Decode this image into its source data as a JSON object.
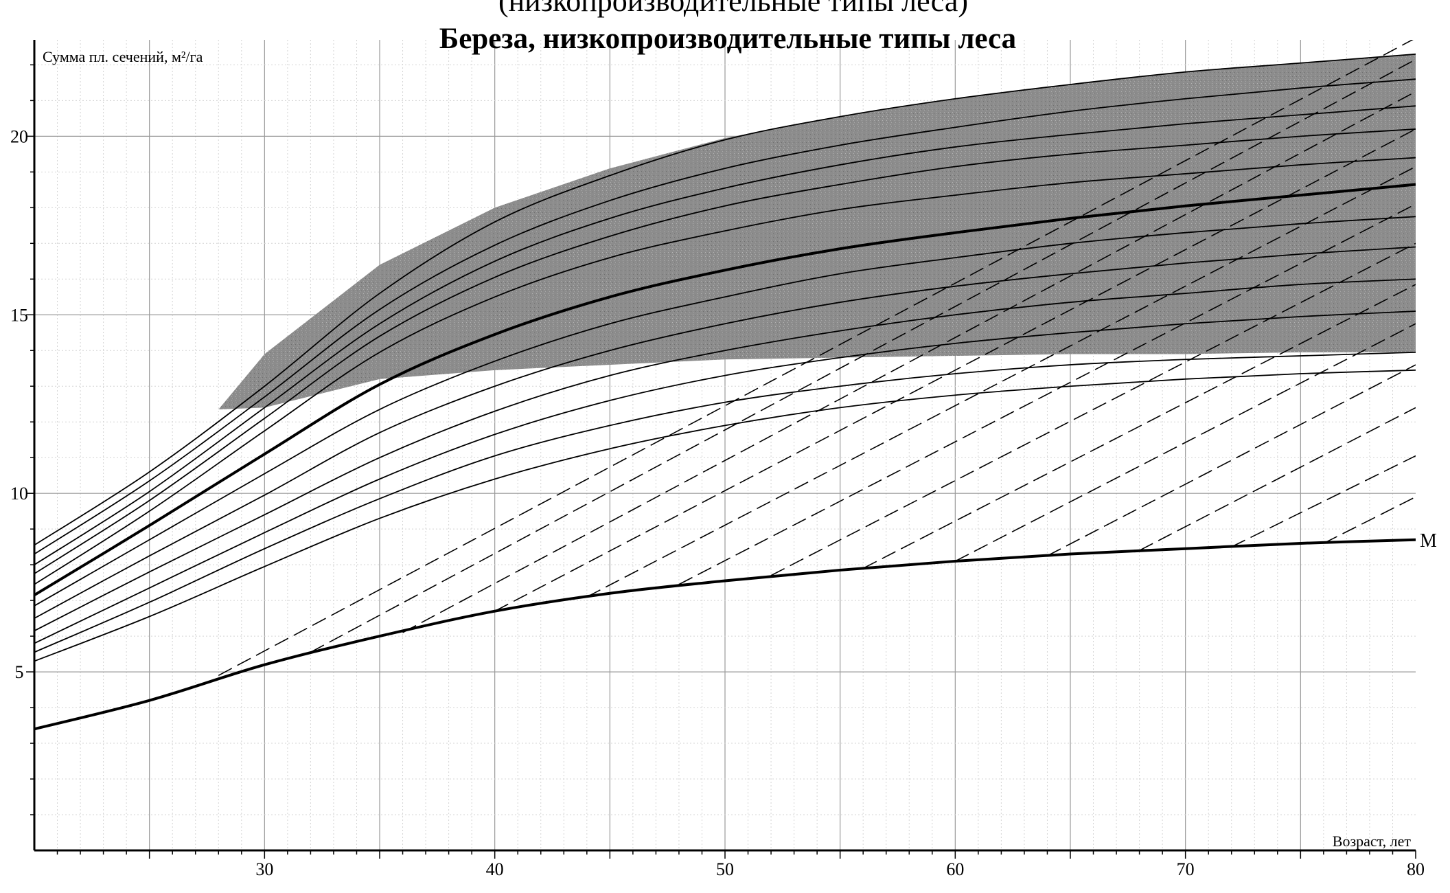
{
  "page_header_fragment": "(низкопроизводительные типы леса)",
  "chart_data": {
    "type": "line",
    "title": "Береза, низкопроизводительные типы леса",
    "xlabel": "Возраст, лет",
    "ylabel": "Сумма пл. сечений, м²/га",
    "xlim": [
      20,
      80
    ],
    "ylim": [
      0,
      22.7
    ],
    "x_ticks": [
      30,
      40,
      50,
      60,
      70,
      80
    ],
    "y_ticks": [
      5,
      10,
      15,
      20
    ],
    "grid": true,
    "shaded_band": {
      "x": [
        28,
        30,
        35,
        40,
        45,
        50,
        55,
        60,
        65,
        70,
        75,
        80
      ],
      "upper": [
        12.35,
        13.9,
        16.4,
        18.0,
        19.1,
        19.95,
        20.55,
        21.05,
        21.45,
        21.8,
        22.05,
        22.3
      ],
      "lower": [
        12.35,
        12.4,
        13.2,
        13.45,
        13.6,
        13.75,
        13.8,
        13.85,
        13.9,
        13.9,
        13.95,
        13.95
      ]
    },
    "solid_series": [
      {
        "x": [
          20,
          25,
          30,
          35,
          40,
          45,
          50,
          55,
          60,
          65,
          70,
          75,
          80
        ],
        "values": [
          8.55,
          10.6,
          13.0,
          15.6,
          17.6,
          18.9,
          19.9,
          20.55,
          21.05,
          21.45,
          21.8,
          22.05,
          22.3
        ]
      },
      {
        "x": [
          20,
          25,
          30,
          35,
          40,
          45,
          50,
          55,
          60,
          65,
          70,
          75,
          80
        ],
        "values": [
          8.3,
          10.35,
          12.7,
          15.15,
          16.95,
          18.2,
          19.1,
          19.75,
          20.25,
          20.7,
          21.05,
          21.35,
          21.6
        ]
      },
      {
        "x": [
          20,
          25,
          30,
          35,
          40,
          45,
          50,
          55,
          60,
          65,
          70,
          75,
          80
        ],
        "values": [
          8.0,
          10.05,
          12.4,
          14.75,
          16.5,
          17.7,
          18.55,
          19.2,
          19.7,
          20.05,
          20.35,
          20.6,
          20.85
        ]
      },
      {
        "x": [
          20,
          25,
          30,
          35,
          40,
          45,
          50,
          55,
          60,
          65,
          70,
          75,
          80
        ],
        "values": [
          7.75,
          9.8,
          12.1,
          14.4,
          16.05,
          17.2,
          18.05,
          18.65,
          19.15,
          19.5,
          19.75,
          20.0,
          20.2
        ]
      },
      {
        "x": [
          20,
          25,
          30,
          35,
          40,
          45,
          50,
          55,
          60,
          65,
          70,
          75,
          80
        ],
        "values": [
          7.45,
          9.5,
          11.75,
          13.95,
          15.5,
          16.6,
          17.35,
          17.95,
          18.35,
          18.7,
          18.95,
          19.2,
          19.4
        ],
        "bold": false
      },
      {
        "x": [
          20,
          25,
          30,
          35,
          40,
          45,
          50,
          55,
          60,
          65,
          70,
          75,
          80
        ],
        "values": [
          7.15,
          9.1,
          11.1,
          13.05,
          14.45,
          15.5,
          16.25,
          16.85,
          17.3,
          17.7,
          18.05,
          18.35,
          18.65
        ],
        "bold": true
      },
      {
        "x": [
          20,
          25,
          30,
          35,
          40,
          45,
          50,
          55,
          60,
          65,
          70,
          75,
          80
        ],
        "values": [
          6.85,
          8.7,
          10.55,
          12.35,
          13.7,
          14.75,
          15.5,
          16.15,
          16.6,
          17.0,
          17.3,
          17.55,
          17.75
        ]
      },
      {
        "x": [
          20,
          25,
          30,
          35,
          40,
          45,
          50,
          55,
          60,
          65,
          70,
          75,
          80
        ],
        "values": [
          6.5,
          8.25,
          9.95,
          11.7,
          13.0,
          14.0,
          14.75,
          15.35,
          15.8,
          16.15,
          16.45,
          16.7,
          16.9
        ]
      },
      {
        "x": [
          20,
          25,
          30,
          35,
          40,
          45,
          50,
          55,
          60,
          65,
          70,
          75,
          80
        ],
        "values": [
          6.15,
          7.8,
          9.4,
          11.0,
          12.3,
          13.3,
          14.0,
          14.55,
          15.0,
          15.35,
          15.6,
          15.85,
          16.0
        ]
      },
      {
        "x": [
          20,
          25,
          30,
          35,
          40,
          45,
          50,
          55,
          60,
          65,
          70,
          75,
          80
        ],
        "values": [
          5.8,
          7.35,
          8.9,
          10.4,
          11.65,
          12.6,
          13.3,
          13.8,
          14.2,
          14.5,
          14.75,
          14.95,
          15.1
        ]
      },
      {
        "x": [
          20,
          25,
          30,
          35,
          40,
          45,
          50,
          55,
          60,
          65,
          70,
          75,
          80
        ],
        "values": [
          5.55,
          6.95,
          8.45,
          9.85,
          11.05,
          11.9,
          12.55,
          13.0,
          13.35,
          13.6,
          13.75,
          13.85,
          13.95
        ]
      },
      {
        "x": [
          20,
          25,
          30,
          35,
          40,
          45,
          50,
          55,
          60,
          65,
          70,
          75,
          80
        ],
        "values": [
          5.3,
          6.55,
          7.95,
          9.3,
          10.4,
          11.25,
          11.9,
          12.4,
          12.75,
          13.0,
          13.2,
          13.35,
          13.45
        ]
      },
      {
        "x": [
          20,
          25,
          30,
          35,
          40,
          45,
          50,
          55,
          60,
          65,
          70,
          75,
          80
        ],
        "values": [
          3.4,
          4.2,
          5.2,
          6.0,
          6.7,
          7.2,
          7.55,
          7.85,
          8.1,
          8.3,
          8.45,
          8.6,
          8.7
        ],
        "bold": true,
        "label": "M"
      }
    ],
    "dashed_series": [
      {
        "x": [
          28.0,
          80.0
        ],
        "values": [
          4.9,
          22.75
        ]
      },
      {
        "x": [
          32.0,
          80.0
        ],
        "values": [
          5.55,
          22.15
        ]
      },
      {
        "x": [
          36.0,
          80.0
        ],
        "values": [
          6.1,
          21.25
        ]
      },
      {
        "x": [
          40.0,
          80.0
        ],
        "values": [
          6.7,
          20.2
        ]
      },
      {
        "x": [
          44.0,
          80.0
        ],
        "values": [
          7.1,
          19.15
        ]
      },
      {
        "x": [
          48.0,
          80.0
        ],
        "values": [
          7.45,
          18.1
        ]
      },
      {
        "x": [
          52.0,
          80.0
        ],
        "values": [
          7.7,
          17.0
        ]
      },
      {
        "x": [
          56.0,
          80.0
        ],
        "values": [
          7.9,
          15.85
        ]
      },
      {
        "x": [
          60.0,
          80.0
        ],
        "values": [
          8.1,
          14.75
        ]
      },
      {
        "x": [
          64.0,
          80.0
        ],
        "values": [
          8.25,
          13.6
        ]
      },
      {
        "x": [
          68.0,
          80.0
        ],
        "values": [
          8.4,
          12.4
        ]
      },
      {
        "x": [
          72.0,
          80.0
        ],
        "values": [
          8.5,
          11.05
        ]
      },
      {
        "x": [
          76.0,
          80.0
        ],
        "values": [
          8.6,
          9.9
        ]
      }
    ]
  }
}
